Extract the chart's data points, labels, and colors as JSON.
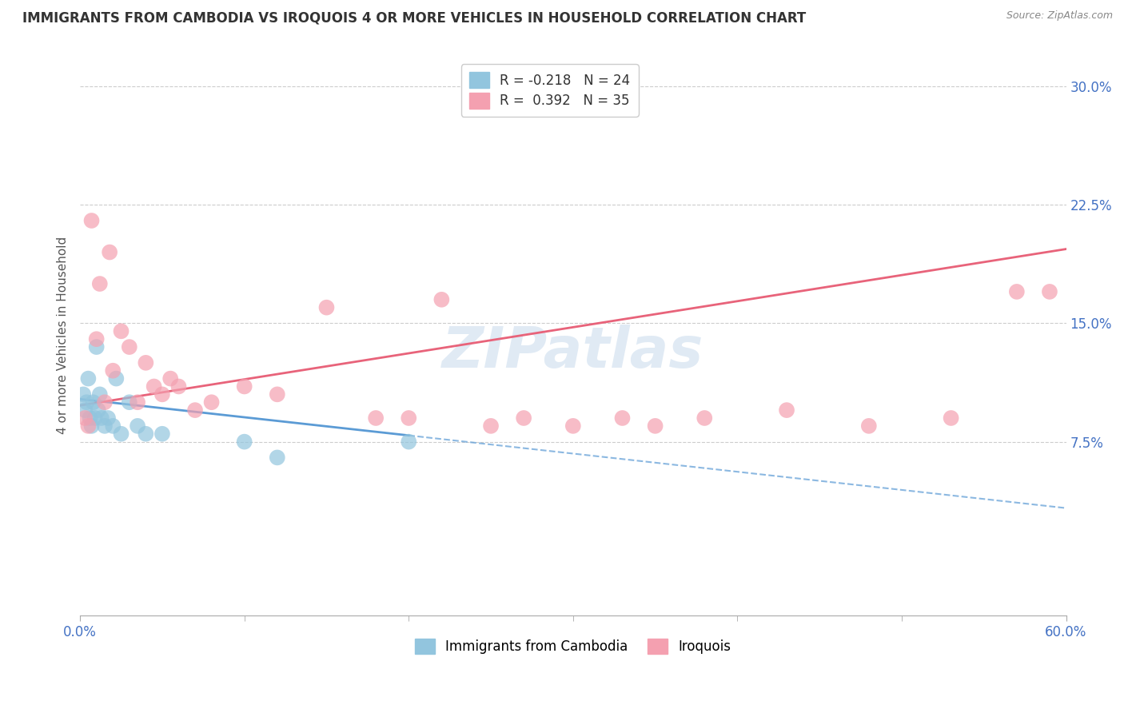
{
  "title": "IMMIGRANTS FROM CAMBODIA VS IROQUOIS 4 OR MORE VEHICLES IN HOUSEHOLD CORRELATION CHART",
  "source": "Source: ZipAtlas.com",
  "ylabel": "4 or more Vehicles in Household",
  "ytick_vals": [
    7.5,
    15.0,
    22.5,
    30.0
  ],
  "xmin": 0.0,
  "xmax": 60.0,
  "ymin": -3.5,
  "ymax": 32.0,
  "legend_r_blue": "R = -0.218",
  "legend_n_blue": "N = 24",
  "legend_r_pink": "R =  0.392",
  "legend_n_pink": "N = 35",
  "blue_color": "#92C5DE",
  "pink_color": "#F4A0B0",
  "blue_line_color": "#5B9BD5",
  "pink_line_color": "#E8637A",
  "watermark": "ZIPatlas",
  "blue_scatter_x": [
    0.2,
    0.3,
    0.4,
    0.5,
    0.6,
    0.7,
    0.8,
    0.9,
    1.0,
    1.1,
    1.2,
    1.3,
    1.5,
    1.7,
    2.0,
    2.2,
    2.5,
    3.0,
    3.5,
    4.0,
    5.0,
    10.0,
    12.0,
    20.0
  ],
  "blue_scatter_y": [
    10.5,
    9.5,
    10.0,
    11.5,
    9.0,
    8.5,
    10.0,
    9.0,
    13.5,
    9.5,
    10.5,
    9.0,
    8.5,
    9.0,
    8.5,
    11.5,
    8.0,
    10.0,
    8.5,
    8.0,
    8.0,
    7.5,
    6.5,
    7.5
  ],
  "pink_scatter_x": [
    0.3,
    0.5,
    0.7,
    1.0,
    1.2,
    1.5,
    1.8,
    2.0,
    2.5,
    3.0,
    3.5,
    4.0,
    4.5,
    5.0,
    5.5,
    6.0,
    7.0,
    8.0,
    10.0,
    12.0,
    15.0,
    18.0,
    20.0,
    22.0,
    25.0,
    27.0,
    30.0,
    33.0,
    35.0,
    38.0,
    43.0,
    48.0,
    53.0,
    57.0,
    59.0
  ],
  "pink_scatter_y": [
    9.0,
    8.5,
    21.5,
    14.0,
    17.5,
    10.0,
    19.5,
    12.0,
    14.5,
    13.5,
    10.0,
    12.5,
    11.0,
    10.5,
    11.5,
    11.0,
    9.5,
    10.0,
    11.0,
    10.5,
    16.0,
    9.0,
    9.0,
    16.5,
    8.5,
    9.0,
    8.5,
    9.0,
    8.5,
    9.0,
    9.5,
    8.5,
    9.0,
    17.0,
    17.0
  ]
}
